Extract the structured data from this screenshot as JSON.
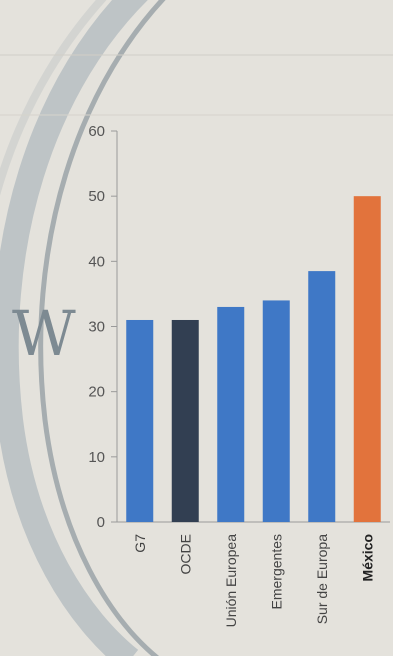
{
  "chart_data": {
    "type": "bar",
    "categories": [
      "G7",
      "OCDE",
      "Unión Europea",
      "Emergentes",
      "Sur de Europa",
      "México"
    ],
    "values": [
      31,
      31,
      33,
      34,
      38.5,
      50
    ],
    "colors": [
      "#3f78c6",
      "#323f52",
      "#3f78c6",
      "#3f78c6",
      "#3f78c6",
      "#e2733c"
    ],
    "highlight": "México",
    "yticks": [
      0,
      10,
      20,
      30,
      40,
      50,
      60
    ],
    "ylim": [
      0,
      60
    ],
    "title": "",
    "xlabel": "",
    "ylabel": "",
    "grid": false
  },
  "decoration": {
    "compass_letter": "W"
  }
}
